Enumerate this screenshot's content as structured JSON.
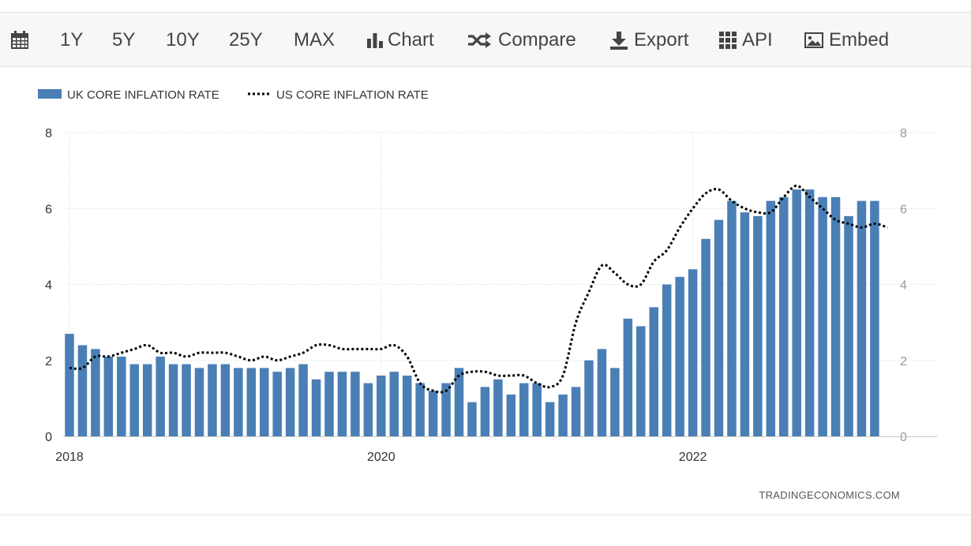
{
  "toolbar": {
    "calendar_icon": "calendar-icon",
    "ranges": [
      "1Y",
      "5Y",
      "10Y",
      "25Y",
      "MAX"
    ],
    "chart_label": "Chart",
    "compare_label": "Compare",
    "export_label": "Export",
    "api_label": "API",
    "embed_label": "Embed"
  },
  "watermark": "TRADINGECONOMICS.COM",
  "colors": {
    "bar": "#4a7fb5",
    "line": "#000000",
    "grid": "#d9d9d9",
    "axis_text": "#333333",
    "right_axis_text": "#999999"
  },
  "chart_data": {
    "type": "bar",
    "legend_position": "top-left",
    "grid": true,
    "ylim": [
      0,
      8
    ],
    "yticks": [
      0,
      2,
      4,
      6,
      8
    ],
    "xlim": [
      "2018-01",
      "2023-06"
    ],
    "xticks": [
      {
        "label": "2018",
        "x": "2018-01"
      },
      {
        "label": "2020",
        "x": "2020-01"
      },
      {
        "label": "2022",
        "x": "2022-01"
      }
    ],
    "series": [
      {
        "name": "UK CORE INFLATION RATE",
        "kind": "bar",
        "start": "2018-01",
        "values": [
          2.7,
          2.4,
          2.3,
          2.1,
          2.1,
          1.9,
          1.9,
          2.1,
          1.9,
          1.9,
          1.8,
          1.9,
          1.9,
          1.8,
          1.8,
          1.8,
          1.7,
          1.8,
          1.9,
          1.5,
          1.7,
          1.7,
          1.7,
          1.4,
          1.6,
          1.7,
          1.6,
          1.4,
          1.2,
          1.4,
          1.8,
          0.9,
          1.3,
          1.5,
          1.1,
          1.4,
          1.4,
          0.9,
          1.1,
          1.3,
          2.0,
          2.3,
          1.8,
          3.1,
          2.9,
          3.4,
          4.0,
          4.2,
          4.4,
          5.2,
          5.7,
          6.2,
          5.9,
          5.8,
          6.2,
          6.3,
          6.5,
          6.5,
          6.3,
          6.3,
          5.8,
          6.2,
          6.2
        ]
      },
      {
        "name": "US CORE INFLATION RATE",
        "kind": "line",
        "start": "2018-01",
        "values": [
          1.8,
          1.8,
          2.1,
          2.1,
          2.2,
          2.3,
          2.4,
          2.2,
          2.2,
          2.1,
          2.2,
          2.2,
          2.2,
          2.1,
          2.0,
          2.1,
          2.0,
          2.1,
          2.2,
          2.4,
          2.4,
          2.3,
          2.3,
          2.3,
          2.3,
          2.4,
          2.1,
          1.4,
          1.2,
          1.2,
          1.6,
          1.7,
          1.7,
          1.6,
          1.6,
          1.6,
          1.4,
          1.3,
          1.6,
          3.0,
          3.8,
          4.5,
          4.3,
          4.0,
          4.0,
          4.6,
          4.9,
          5.5,
          6.0,
          6.4,
          6.5,
          6.2,
          6.0,
          5.9,
          5.9,
          6.3,
          6.6,
          6.3,
          6.0,
          5.7,
          5.6,
          5.5,
          5.6,
          5.5
        ]
      }
    ]
  }
}
